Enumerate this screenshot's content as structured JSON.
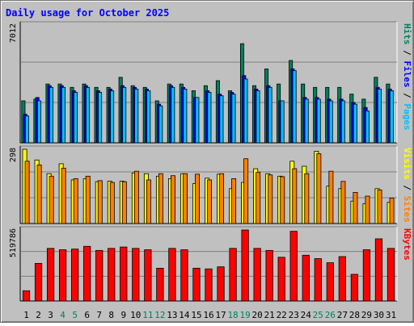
{
  "chart_data": {
    "type": "bar",
    "title": "Daily usage for October 2025",
    "categories": [
      "1",
      "2",
      "3",
      "4",
      "5",
      "6",
      "7",
      "8",
      "9",
      "10",
      "11",
      "12",
      "13",
      "14",
      "15",
      "16",
      "17",
      "18",
      "19",
      "20",
      "21",
      "22",
      "23",
      "24",
      "25",
      "26",
      "27",
      "28",
      "29",
      "30",
      "31"
    ],
    "weekend_days": [
      "4",
      "5",
      "11",
      "12",
      "18",
      "19",
      "25",
      "26"
    ],
    "panels": [
      {
        "id": "hits",
        "max_label": "7012",
        "ylim": [
          0,
          7012
        ],
        "ylabel_parts": [
          "Pages",
          "Files",
          "Hits"
        ],
        "series": [
          {
            "name": "Hits",
            "color": "#00805c",
            "values": [
              2500,
              2600,
              3500,
              3500,
              3300,
              3500,
              3300,
              3300,
              3900,
              3400,
              3300,
              2500,
              3500,
              3500,
              3100,
              3400,
              3700,
              3100,
              5900,
              3400,
              4400,
              3500,
              4900,
              3500,
              3300,
              3300,
              3300,
              2900,
              2600,
              3900,
              3500
            ]
          },
          {
            "name": "Files",
            "color": "#0000ff",
            "values": [
              1700,
              2700,
              3400,
              3400,
              3100,
              3400,
              3100,
              3200,
              3400,
              3300,
              3200,
              2300,
              3400,
              3300,
              2700,
              3100,
              2900,
              3000,
              4000,
              3200,
              3400,
              2500,
              4400,
              2700,
              2700,
              2600,
              2600,
              2400,
              2100,
              3300,
              3200
            ]
          },
          {
            "name": "Pages",
            "color": "#00c0ff",
            "values": [
              1600,
              2500,
              3300,
              3300,
              3000,
              3300,
              3000,
              3100,
              3300,
              3200,
              3100,
              2200,
              3300,
              3200,
              2700,
              3000,
              2800,
              2900,
              3800,
              3100,
              3300,
              2500,
              4300,
              2600,
              2600,
              2500,
              2500,
              2300,
              1900,
              3200,
              3100
            ]
          }
        ]
      },
      {
        "id": "visits",
        "max_label": "298",
        "ylim": [
          0,
          298
        ],
        "ylabel_parts": [
          "Sites",
          "Visits"
        ],
        "series": [
          {
            "name": "Visits",
            "color": "#ffff00",
            "values": [
              298,
              255,
              200,
              240,
              175,
              180,
              168,
              170,
              170,
              203,
              200,
              190,
              180,
              200,
              160,
              182,
              198,
              140,
              165,
              220,
              200,
              190,
              250,
              230,
              290,
              150,
              140,
              90,
              80,
              140,
              85
            ]
          },
          {
            "name": "Sites",
            "color": "#ff8000",
            "values": [
              250,
              235,
              190,
              222,
              180,
              190,
              172,
              165,
              168,
              210,
              175,
              200,
              192,
              200,
              198,
              175,
              200,
              180,
              260,
              205,
              195,
              188,
              220,
              200,
              280,
              210,
              169,
              125,
              110,
              135,
              102
            ]
          }
        ]
      },
      {
        "id": "kbytes",
        "max_label": "519786",
        "ylim": [
          0,
          519786
        ],
        "ylabel_parts": [
          "KBytes"
        ],
        "series": [
          {
            "name": "KBytes",
            "color": "#ff0000",
            "values": [
              75000,
              275000,
              385000,
              375000,
              380000,
              400000,
              370000,
              385000,
              395000,
              385000,
              375000,
              240000,
              385000,
              375000,
              240000,
              235000,
              250000,
              385000,
              519786,
              385000,
              370000,
              320000,
              510000,
              335000,
              310000,
              280000,
              325000,
              195000,
              375000,
              455000,
              385000
            ]
          }
        ]
      }
    ]
  }
}
